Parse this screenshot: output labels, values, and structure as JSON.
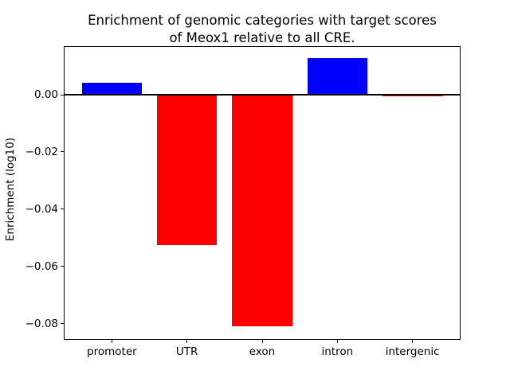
{
  "chart_data": {
    "type": "bar",
    "title_lines": {
      "line1": "Enrichment of genomic categories with target scores",
      "line2": "of Meox1 relative to all CRE."
    },
    "ylabel": "Enrichment (log10)",
    "categories": [
      "promoter",
      "UTR",
      "exon",
      "intron",
      "intergenic"
    ],
    "values": [
      0.0042,
      -0.0525,
      -0.0809,
      0.0128,
      -0.0006
    ],
    "bar_colors": [
      "#0000ff",
      "#ff0000",
      "#ff0000",
      "#0000ff",
      "#ff0000"
    ],
    "positive_color": "#0000ff",
    "negative_color": "#ff0000",
    "yticks": [
      0.0,
      -0.02,
      -0.04,
      -0.06,
      -0.08
    ],
    "ytick_labels": [
      "0.00",
      "−0.02",
      "−0.04",
      "−0.06",
      "−0.08"
    ],
    "ylim": [
      -0.0857,
      0.017
    ],
    "xlim": [
      -0.64,
      4.64
    ],
    "bar_width": 0.8,
    "zero_line": true,
    "grid": false,
    "legend": "none",
    "background_color": "#ffffff",
    "axes_edge_color": "#000000"
  }
}
